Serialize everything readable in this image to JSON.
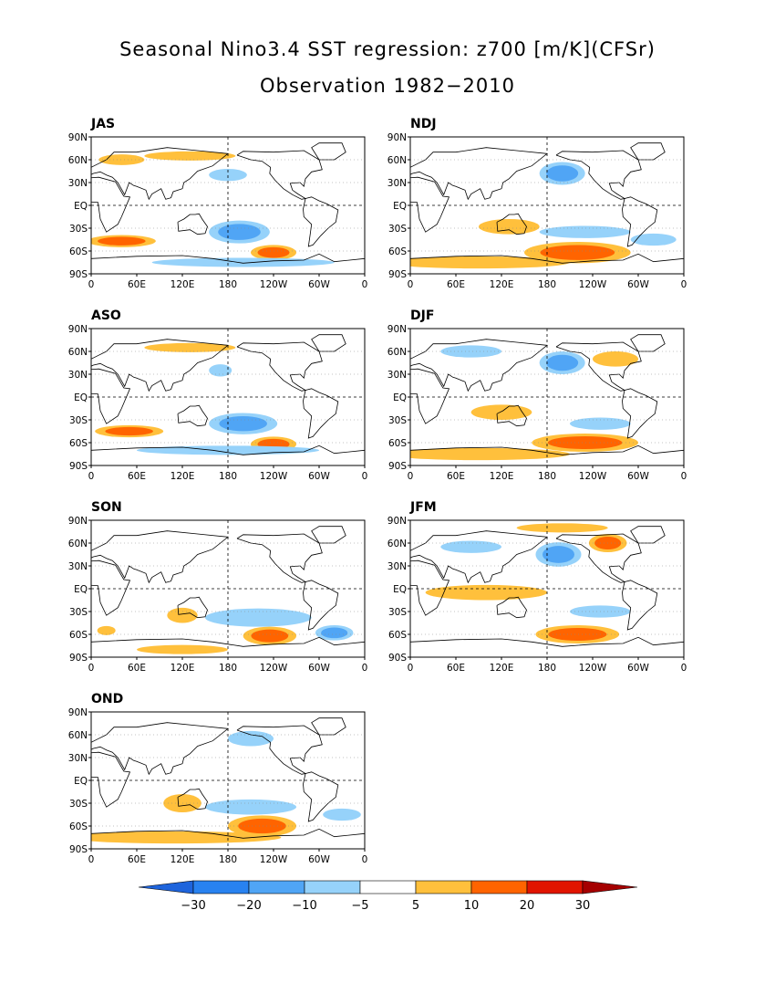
{
  "title": "Seasonal Nino3.4 SST regression: z700 [m/K](CFSr)",
  "subtitle": "Observation 1982−2010",
  "lat_labels": [
    "90N",
    "60N",
    "30N",
    "EQ",
    "30S",
    "60S",
    "90S"
  ],
  "lon_labels": [
    "0",
    "60E",
    "120E",
    "180",
    "120W",
    "60W",
    "0"
  ],
  "panels": [
    {
      "season": "JAS",
      "blobs": [
        {
          "lon": 195,
          "lat": -35,
          "rx": 40,
          "ry": 15,
          "v": -12
        },
        {
          "lon": 240,
          "lat": -62,
          "rx": 30,
          "ry": 10,
          "v": 18
        },
        {
          "lon": 40,
          "lat": -47,
          "rx": 45,
          "ry": 8,
          "v": 12
        },
        {
          "lon": 200,
          "lat": -75,
          "rx": 120,
          "ry": 6,
          "v": -6
        },
        {
          "lon": 130,
          "lat": 65,
          "rx": 60,
          "ry": 6,
          "v": 6
        },
        {
          "lon": 40,
          "lat": 60,
          "rx": 30,
          "ry": 7,
          "v": 7
        },
        {
          "lon": 180,
          "lat": 40,
          "rx": 25,
          "ry": 8,
          "v": -6
        }
      ]
    },
    {
      "season": "NDJ",
      "blobs": [
        {
          "lon": 200,
          "lat": 42,
          "rx": 30,
          "ry": 15,
          "v": -15
        },
        {
          "lon": 130,
          "lat": -28,
          "rx": 40,
          "ry": 10,
          "v": 8
        },
        {
          "lon": 220,
          "lat": -62,
          "rx": 70,
          "ry": 14,
          "v": 14
        },
        {
          "lon": 90,
          "lat": -75,
          "rx": 120,
          "ry": 8,
          "v": 8
        },
        {
          "lon": 230,
          "lat": -35,
          "rx": 60,
          "ry": 8,
          "v": -6
        },
        {
          "lon": 320,
          "lat": -45,
          "rx": 30,
          "ry": 8,
          "v": -7
        }
      ]
    },
    {
      "season": "ASO",
      "blobs": [
        {
          "lon": 200,
          "lat": -35,
          "rx": 45,
          "ry": 14,
          "v": -13
        },
        {
          "lon": 240,
          "lat": -62,
          "rx": 30,
          "ry": 10,
          "v": 18
        },
        {
          "lon": 50,
          "lat": -45,
          "rx": 45,
          "ry": 8,
          "v": 10
        },
        {
          "lon": 180,
          "lat": -70,
          "rx": 120,
          "ry": 6,
          "v": -6
        },
        {
          "lon": 130,
          "lat": 65,
          "rx": 60,
          "ry": 6,
          "v": 6
        },
        {
          "lon": 170,
          "lat": 35,
          "rx": 15,
          "ry": 8,
          "v": -7
        }
      ]
    },
    {
      "season": "DJF",
      "blobs": [
        {
          "lon": 200,
          "lat": 45,
          "rx": 30,
          "ry": 15,
          "v": -17
        },
        {
          "lon": 120,
          "lat": -20,
          "rx": 40,
          "ry": 10,
          "v": 8
        },
        {
          "lon": 230,
          "lat": -60,
          "rx": 70,
          "ry": 12,
          "v": 14
        },
        {
          "lon": 90,
          "lat": -75,
          "rx": 120,
          "ry": 8,
          "v": 8
        },
        {
          "lon": 270,
          "lat": 50,
          "rx": 30,
          "ry": 10,
          "v": 8
        },
        {
          "lon": 250,
          "lat": -35,
          "rx": 40,
          "ry": 8,
          "v": -6
        },
        {
          "lon": 80,
          "lat": 60,
          "rx": 40,
          "ry": 8,
          "v": -6
        }
      ]
    },
    {
      "season": "SON",
      "blobs": [
        {
          "lon": 235,
          "lat": -62,
          "rx": 35,
          "ry": 12,
          "v": 18
        },
        {
          "lon": 220,
          "lat": -38,
          "rx": 70,
          "ry": 12,
          "v": -8
        },
        {
          "lon": 320,
          "lat": -58,
          "rx": 25,
          "ry": 10,
          "v": -12
        },
        {
          "lon": 120,
          "lat": -35,
          "rx": 20,
          "ry": 10,
          "v": 8
        },
        {
          "lon": 120,
          "lat": -80,
          "rx": 60,
          "ry": 6,
          "v": 8
        },
        {
          "lon": 20,
          "lat": -55,
          "rx": 12,
          "ry": 6,
          "v": 7
        }
      ]
    },
    {
      "season": "JFM",
      "blobs": [
        {
          "lon": 195,
          "lat": 45,
          "rx": 30,
          "ry": 16,
          "v": -18
        },
        {
          "lon": 260,
          "lat": 60,
          "rx": 25,
          "ry": 12,
          "v": 12
        },
        {
          "lon": 220,
          "lat": -60,
          "rx": 55,
          "ry": 12,
          "v": 16
        },
        {
          "lon": 100,
          "lat": -5,
          "rx": 80,
          "ry": 10,
          "v": 6
        },
        {
          "lon": 200,
          "lat": 80,
          "rx": 60,
          "ry": 6,
          "v": 7
        },
        {
          "lon": 80,
          "lat": 55,
          "rx": 40,
          "ry": 8,
          "v": -6
        },
        {
          "lon": 250,
          "lat": -30,
          "rx": 40,
          "ry": 8,
          "v": -7
        }
      ]
    },
    {
      "season": "OND",
      "blobs": [
        {
          "lon": 225,
          "lat": -60,
          "rx": 45,
          "ry": 14,
          "v": 18
        },
        {
          "lon": 110,
          "lat": -75,
          "rx": 140,
          "ry": 8,
          "v": 8
        },
        {
          "lon": 120,
          "lat": -30,
          "rx": 25,
          "ry": 12,
          "v": 8
        },
        {
          "lon": 210,
          "lat": -35,
          "rx": 60,
          "ry": 10,
          "v": -7
        },
        {
          "lon": 210,
          "lat": 55,
          "rx": 30,
          "ry": 10,
          "v": -7
        },
        {
          "lon": 330,
          "lat": -45,
          "rx": 25,
          "ry": 8,
          "v": -7
        }
      ]
    }
  ],
  "colorbar": {
    "labels": [
      "−30",
      "−20",
      "−10",
      "−5",
      "5",
      "10",
      "20",
      "30"
    ],
    "colors": [
      "#1e64dc",
      "#2882f0",
      "#50a5f5",
      "#96d2fa",
      "#ffffff",
      "#ffc03c",
      "#ff6400",
      "#e11400",
      "#a50000"
    ]
  }
}
